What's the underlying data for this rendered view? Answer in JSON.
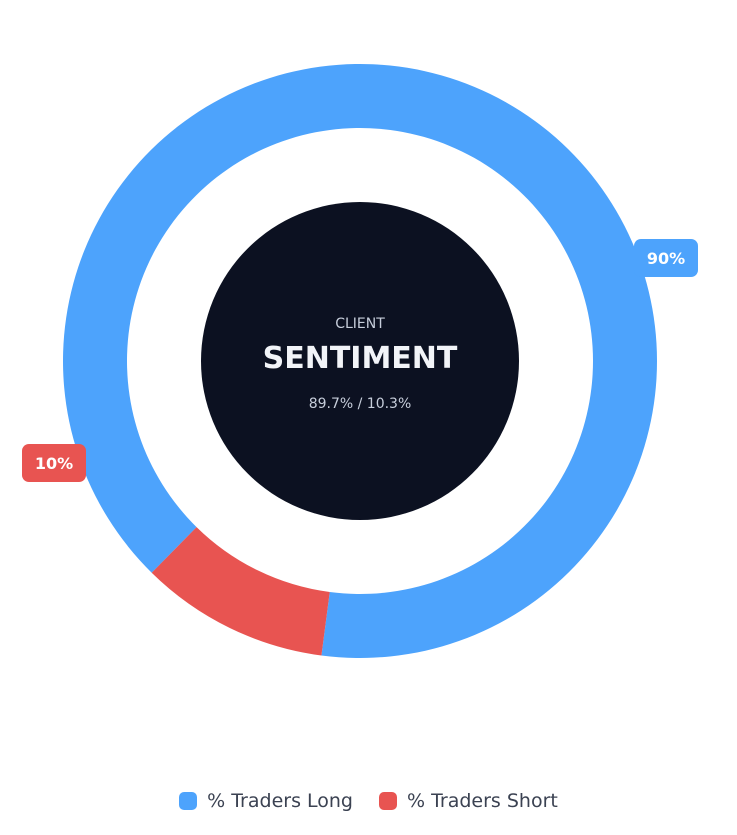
{
  "chart_data": {
    "type": "pie",
    "variant": "doughnut",
    "categories": [
      "% Traders Long",
      "% Traders Short"
    ],
    "values": [
      89.7,
      10.3
    ],
    "data_labels": [
      "90%",
      "10%"
    ],
    "colors": [
      "#4da3fc",
      "#e85451"
    ],
    "legend_position": "bottom",
    "center": {
      "caption": "CLIENT",
      "title": "SENTIMENT",
      "subtitle": "89.7% / 10.3%"
    }
  },
  "legend": {
    "items": [
      {
        "label": "% Traders Long",
        "color": "#4da3fc"
      },
      {
        "label": "% Traders Short",
        "color": "#e85451"
      }
    ]
  }
}
